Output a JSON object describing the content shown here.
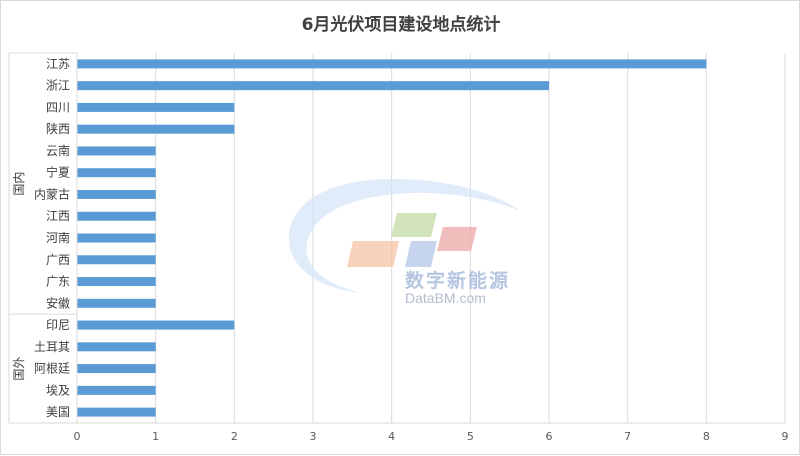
{
  "chart_data": {
    "type": "bar",
    "orientation": "horizontal",
    "title": "6月光伏项目建设地点统计",
    "groups": [
      {
        "label": "国内",
        "categories": [
          "江苏",
          "浙江",
          "四川",
          "陕西",
          "云南",
          "宁夏",
          "内蒙古",
          "江西",
          "河南",
          "广西",
          "广东",
          "安徽"
        ]
      },
      {
        "label": "国外",
        "categories": [
          "印尼",
          "土耳其",
          "阿根廷",
          "埃及",
          "美国"
        ]
      }
    ],
    "categories": [
      "江苏",
      "浙江",
      "四川",
      "陕西",
      "云南",
      "宁夏",
      "内蒙古",
      "江西",
      "河南",
      "广西",
      "广东",
      "安徽",
      "印尼",
      "土耳其",
      "阿根廷",
      "埃及",
      "美国"
    ],
    "values": [
      8,
      6,
      2,
      2,
      1,
      1,
      1,
      1,
      1,
      1,
      1,
      1,
      2,
      1,
      1,
      1,
      1
    ],
    "xlim": [
      0,
      9
    ],
    "xticks": [
      "0",
      "1",
      "2",
      "3",
      "4",
      "5",
      "6",
      "7",
      "8",
      "9"
    ],
    "grid": true,
    "bar_color": "#5b9bd5",
    "grid_color": "#d9d9d9"
  },
  "watermark": {
    "cn_text": "数字新能源",
    "en_text": "DataBM.com"
  }
}
